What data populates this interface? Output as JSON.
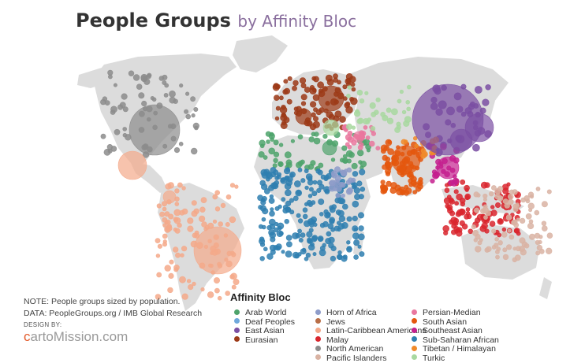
{
  "title": {
    "main": "People Groups",
    "sub": "by Affinity Bloc"
  },
  "legend": {
    "title": "Affinity Bloc",
    "items": [
      {
        "label": "Arab World",
        "color": "#4ea36b"
      },
      {
        "label": "Deaf Peoples",
        "color": "#6fa8dc"
      },
      {
        "label": "East Asian",
        "color": "#7b4fa3"
      },
      {
        "label": "Eurasian",
        "color": "#9c3a17"
      },
      {
        "label": "Horn of Africa",
        "color": "#8e9cc9"
      },
      {
        "label": "Jews",
        "color": "#b96e47"
      },
      {
        "label": "Latin-Caribbean Americans",
        "color": "#f4a98a"
      },
      {
        "label": "Malay",
        "color": "#d9262e"
      },
      {
        "label": "North American",
        "color": "#8c8c8c"
      },
      {
        "label": "Pacific Islanders",
        "color": "#d9b3a3"
      },
      {
        "label": "Persian-Median",
        "color": "#e9779e"
      },
      {
        "label": "South Asian",
        "color": "#e4570e"
      },
      {
        "label": "Southeast Asian",
        "color": "#c41f8e"
      },
      {
        "label": "Sub-Saharan African",
        "color": "#2f7fb0"
      },
      {
        "label": "Tibetan / Himalayan",
        "color": "#f08a2a"
      },
      {
        "label": "Turkic",
        "color": "#a8d8a0"
      }
    ]
  },
  "notes": {
    "line1": "NOTE: People groups sized by population.",
    "line2": "DATA: PeopleGroups.org / IMB Global Research"
  },
  "credit": {
    "design_by": "DESIGN BY:",
    "logo_prefix": "c",
    "logo_text": "artoMission.com"
  }
}
